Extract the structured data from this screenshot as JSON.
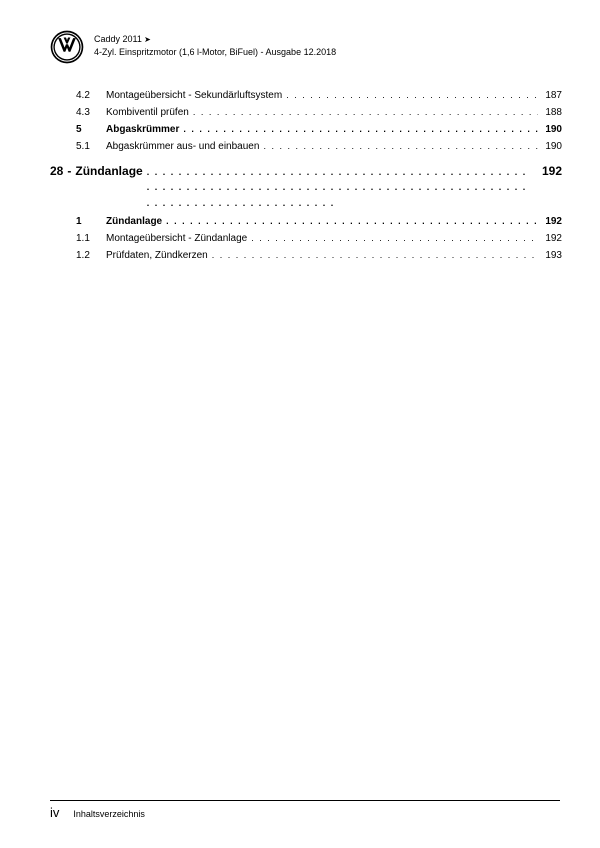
{
  "header": {
    "line1": "Caddy 2011",
    "line2": "4-Zyl. Einspritzmotor (1,6 l-Motor, BiFuel) - Ausgabe 12.2018"
  },
  "toc": {
    "group1": [
      {
        "num": "4.2",
        "label": "Montageübersicht - Sekundärluftsystem",
        "page": "187",
        "bold": false
      },
      {
        "num": "4.3",
        "label": "Kombiventil prüfen",
        "page": "188",
        "bold": false
      },
      {
        "num": "5",
        "label": "Abgaskrümmer",
        "page": "190",
        "bold": true
      },
      {
        "num": "5.1",
        "label": "Abgaskrümmer aus- und einbauen",
        "page": "190",
        "bold": false
      }
    ],
    "section": {
      "num": "28",
      "dash": "-",
      "label": "Zündanlage",
      "page": "192"
    },
    "group2": [
      {
        "num": "1",
        "label": "Zündanlage",
        "page": "192",
        "bold": true
      },
      {
        "num": "1.1",
        "label": "Montageübersicht - Zündanlage",
        "page": "192",
        "bold": false
      },
      {
        "num": "1.2",
        "label": "Prüfdaten, Zündkerzen",
        "page": "193",
        "bold": false
      }
    ]
  },
  "footer": {
    "page_num": "iv",
    "label": "Inhaltsverzeichnis"
  }
}
